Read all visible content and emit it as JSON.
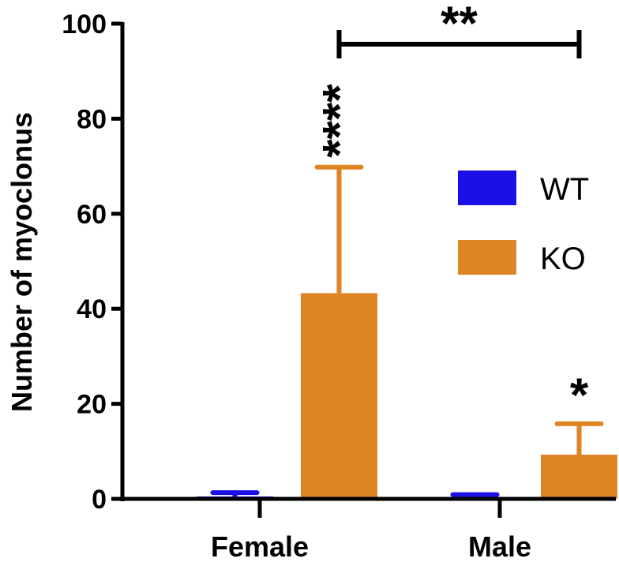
{
  "chart_data": {
    "type": "bar",
    "title": "",
    "xlabel": "",
    "ylabel": "Number of myoclonus",
    "ylim": [
      0,
      100
    ],
    "yticks": [
      0,
      20,
      40,
      60,
      80,
      100
    ],
    "categories": [
      "Female",
      "Male"
    ],
    "series": [
      {
        "name": "WT",
        "color": "#1a10e6",
        "values": [
          0.5,
          0.3
        ],
        "errors": [
          0.8,
          0.6
        ]
      },
      {
        "name": "KO",
        "color": "#e08526",
        "values": [
          43.3,
          9.3
        ],
        "errors": [
          26.5,
          6.5
        ]
      }
    ],
    "significance": [
      {
        "label": "****",
        "category": "Female",
        "series": "KO"
      },
      {
        "label": "*",
        "category": "Male",
        "series": "KO"
      },
      {
        "label": "**",
        "between": [
          "Female",
          "Male"
        ],
        "series": "KO"
      }
    ],
    "grid": false,
    "legend": {
      "position": "right",
      "entries": [
        "WT",
        "KO"
      ]
    }
  }
}
